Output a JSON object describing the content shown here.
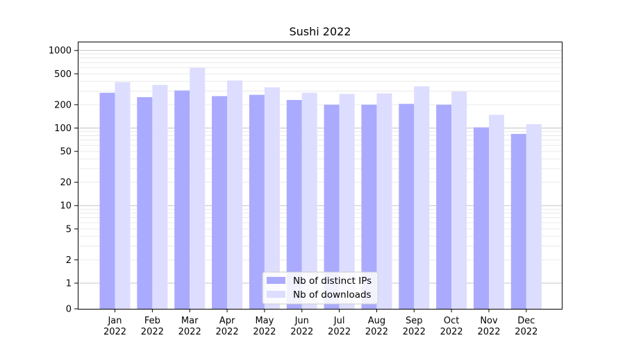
{
  "chart_data": {
    "type": "bar",
    "title": "Sushi 2022",
    "xlabel": "",
    "ylabel": "",
    "yscale": "symlog",
    "ylim": [
      0,
      1300
    ],
    "yticks": [
      0,
      1,
      2,
      5,
      10,
      20,
      50,
      100,
      200,
      500,
      1000
    ],
    "categories": [
      "Jan\n2022",
      "Feb\n2022",
      "Mar\n2022",
      "Apr\n2022",
      "May\n2022",
      "Jun\n2022",
      "Jul\n2022",
      "Aug\n2022",
      "Sep\n2022",
      "Oct\n2022",
      "Nov\n2022",
      "Dec\n2022"
    ],
    "series": [
      {
        "name": "Nb of distinct IPs",
        "color": "#aaaaff",
        "values": [
          285,
          250,
          305,
          258,
          268,
          230,
          200,
          200,
          205,
          200,
          102,
          84
        ]
      },
      {
        "name": "Nb of downloads",
        "color": "#ddddff",
        "values": [
          390,
          360,
          600,
          410,
          335,
          285,
          275,
          280,
          345,
          295,
          148,
          112
        ]
      }
    ],
    "grid": true,
    "legend_position": "lower-center"
  }
}
